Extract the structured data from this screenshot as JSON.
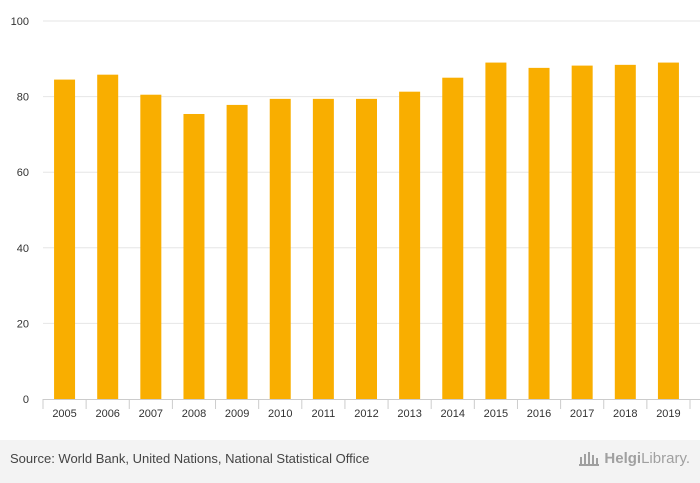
{
  "chart_data": {
    "type": "bar",
    "title": "",
    "xlabel": "",
    "ylabel": "",
    "categories": [
      "2005",
      "2006",
      "2007",
      "2008",
      "2009",
      "2010",
      "2011",
      "2012",
      "2013",
      "2014",
      "2015",
      "2016",
      "2017",
      "2018",
      "2019"
    ],
    "values": [
      84.5,
      85.8,
      80.5,
      75.4,
      77.8,
      79.4,
      79.4,
      79.4,
      81.3,
      85.0,
      89.0,
      87.6,
      88.2,
      88.4,
      89.0
    ],
    "yticks": [
      0,
      20,
      40,
      60,
      80,
      100
    ],
    "ylim": [
      0,
      100
    ],
    "grid": true,
    "bar_color": "#f9ae00",
    "grid_color": "#e6e6e6"
  },
  "footer": {
    "source": "Source: World Bank, United Nations, National Statistical Office",
    "logo_bold": "Helgi",
    "logo_regular": "Library."
  }
}
